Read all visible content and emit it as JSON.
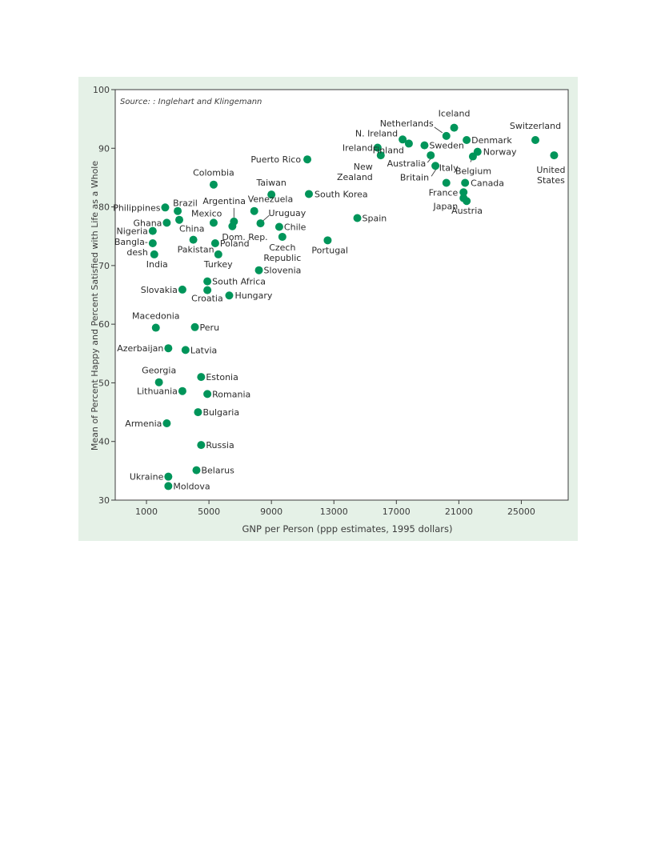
{
  "chart_data": {
    "type": "scatter",
    "source_note": "Source: : Inglehart and Klingemann",
    "xlabel": "GNP per Person (ppp estimates, 1995 dollars)",
    "ylabel": "Mean of Percent Happy and Percent Satisfied with Life as a Whole",
    "xlim": [
      -1000,
      28000
    ],
    "ylim": [
      30,
      100
    ],
    "xticks": [
      1000,
      5000,
      9000,
      13000,
      17000,
      21000,
      25000
    ],
    "yticks": [
      30,
      40,
      50,
      60,
      70,
      80,
      90,
      100
    ],
    "grid": false,
    "colors": {
      "point": "#00955a",
      "panel": "#e5f1e7",
      "axis": "#3c3c3c"
    },
    "points": [
      {
        "name": "Iceland",
        "x": 20700,
        "y": 93.5
      },
      {
        "name": "Netherlands",
        "x": 20200,
        "y": 92.1
      },
      {
        "name": "Denmark",
        "x": 21500,
        "y": 91.4
      },
      {
        "name": "N. Ireland",
        "x": 17400,
        "y": 91.5
      },
      {
        "name": "Sweden",
        "x": 18800,
        "y": 90.5
      },
      {
        "name": "Switzerland",
        "x": 25900,
        "y": 91.4
      },
      {
        "name": "Ireland",
        "x": 15800,
        "y": 90.1
      },
      {
        "name": "Finland",
        "x": 17800,
        "y": 90.8
      },
      {
        "name": "Norway",
        "x": 22200,
        "y": 89.4
      },
      {
        "name": "New Zealand",
        "x": 16000,
        "y": 88.8
      },
      {
        "name": "Australia",
        "x": 19200,
        "y": 88.8
      },
      {
        "name": "Belgium",
        "x": 21900,
        "y": 88.6
      },
      {
        "name": "United States",
        "x": 27100,
        "y": 88.8
      },
      {
        "name": "Puerto Rico",
        "x": 11300,
        "y": 88.1
      },
      {
        "name": "Britain",
        "x": 19500,
        "y": 87.0
      },
      {
        "name": "Italy",
        "x": 20200,
        "y": 84.1
      },
      {
        "name": "Canada",
        "x": 21400,
        "y": 84.1
      },
      {
        "name": "France",
        "x": 21300,
        "y": 82.5
      },
      {
        "name": "Japan",
        "x": 21300,
        "y": 81.5
      },
      {
        "name": "Austria",
        "x": 21500,
        "y": 81.0
      },
      {
        "name": "Colombia",
        "x": 5300,
        "y": 83.8
      },
      {
        "name": "Taiwan",
        "x": 9000,
        "y": 82.1
      },
      {
        "name": "South Korea",
        "x": 11400,
        "y": 82.2
      },
      {
        "name": "Philippines",
        "x": 2200,
        "y": 79.9
      },
      {
        "name": "Brazil",
        "x": 3000,
        "y": 79.3
      },
      {
        "name": "Venezuela",
        "x": 7900,
        "y": 79.3
      },
      {
        "name": "Spain",
        "x": 14500,
        "y": 78.1
      },
      {
        "name": "China",
        "x": 3100,
        "y": 77.8
      },
      {
        "name": "Argentina",
        "x": 6600,
        "y": 77.5
      },
      {
        "name": "Ghana",
        "x": 2300,
        "y": 77.3
      },
      {
        "name": "Mexico",
        "x": 5300,
        "y": 77.3
      },
      {
        "name": "Uruguay",
        "x": 8300,
        "y": 77.2
      },
      {
        "name": "Dom. Rep.",
        "x": 6500,
        "y": 76.7
      },
      {
        "name": "Chile",
        "x": 9500,
        "y": 76.6
      },
      {
        "name": "Nigeria",
        "x": 1400,
        "y": 75.9
      },
      {
        "name": "Czech Republic",
        "x": 9700,
        "y": 74.9
      },
      {
        "name": "Pakistan",
        "x": 4000,
        "y": 74.4
      },
      {
        "name": "Portugal",
        "x": 12600,
        "y": 74.3
      },
      {
        "name": "Bangladesh",
        "x": 1400,
        "y": 73.8
      },
      {
        "name": "Poland",
        "x": 5400,
        "y": 73.8
      },
      {
        "name": "India",
        "x": 1500,
        "y": 71.9
      },
      {
        "name": "Turkey",
        "x": 5600,
        "y": 71.9
      },
      {
        "name": "Slovenia",
        "x": 8200,
        "y": 69.2
      },
      {
        "name": "South Africa",
        "x": 4900,
        "y": 67.3
      },
      {
        "name": "Slovakia",
        "x": 3300,
        "y": 65.9
      },
      {
        "name": "Croatia",
        "x": 4900,
        "y": 65.8
      },
      {
        "name": "Hungary",
        "x": 6300,
        "y": 64.9
      },
      {
        "name": "Macedonia",
        "x": 1600,
        "y": 59.4
      },
      {
        "name": "Peru",
        "x": 4100,
        "y": 59.5
      },
      {
        "name": "Azerbaijan",
        "x": 2400,
        "y": 55.9
      },
      {
        "name": "Latvia",
        "x": 3500,
        "y": 55.6
      },
      {
        "name": "Estonia",
        "x": 4500,
        "y": 51.0
      },
      {
        "name": "Georgia",
        "x": 1800,
        "y": 50.1
      },
      {
        "name": "Lithuania",
        "x": 3300,
        "y": 48.6
      },
      {
        "name": "Romania",
        "x": 4900,
        "y": 48.1
      },
      {
        "name": "Bulgaria",
        "x": 4300,
        "y": 45.0
      },
      {
        "name": "Armenia",
        "x": 2300,
        "y": 43.1
      },
      {
        "name": "Russia",
        "x": 4500,
        "y": 39.4
      },
      {
        "name": "Belarus",
        "x": 4200,
        "y": 35.1
      },
      {
        "name": "Ukraine",
        "x": 2400,
        "y": 34.0
      },
      {
        "name": "Moldova",
        "x": 2400,
        "y": 32.4
      }
    ]
  }
}
